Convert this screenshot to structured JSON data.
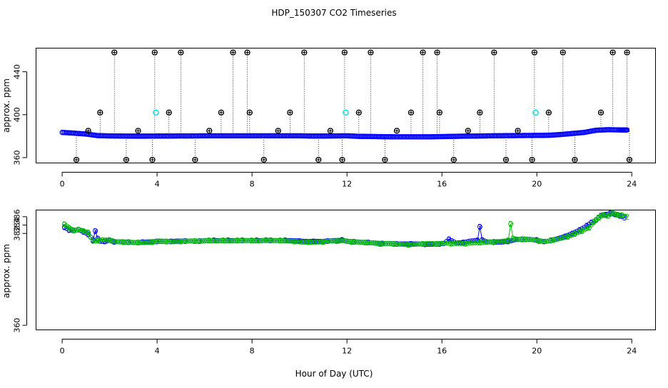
{
  "figure": {
    "title": "HDP_150307  CO2 Timeseries",
    "xlabel": "Hour of Day (UTC)"
  },
  "chart_data": [
    {
      "type": "scatter",
      "panel": "top",
      "ylabel": "approx. ppm",
      "xlim": [
        -1.1,
        25.0
      ],
      "ylim": [
        355,
        462
      ],
      "x_ticks": [
        0,
        4,
        8,
        12,
        16,
        20,
        24
      ],
      "y_ticks": [
        360,
        400,
        440
      ],
      "series": [
        {
          "name": "hourly CO2 trace (blue)",
          "color": "#0000ff",
          "x": [
            0.0,
            0.5,
            1.0,
            1.5,
            2.0,
            2.5,
            3.0,
            3.5,
            4.0,
            4.5,
            5.0,
            5.5,
            6.0,
            6.5,
            7.0,
            7.5,
            8.0,
            8.5,
            9.0,
            9.5,
            10.0,
            10.5,
            11.0,
            11.5,
            12.0,
            12.5,
            13.0,
            13.5,
            14.0,
            14.5,
            15.0,
            15.5,
            16.0,
            16.5,
            17.0,
            17.5,
            18.0,
            18.5,
            19.0,
            19.5,
            20.0,
            20.5,
            21.0,
            21.5,
            22.0,
            22.5,
            23.0,
            23.5,
            23.8
          ],
          "y": [
            383.5,
            382.8,
            382.0,
            380.5,
            380.2,
            380.1,
            380.0,
            380.0,
            380.1,
            380.1,
            380.2,
            380.2,
            380.3,
            380.3,
            380.3,
            380.3,
            380.3,
            380.3,
            380.3,
            380.3,
            380.3,
            380.1,
            380.1,
            380.2,
            380.3,
            379.8,
            379.7,
            379.5,
            379.4,
            379.4,
            379.4,
            379.4,
            379.6,
            379.8,
            380.0,
            380.1,
            380.3,
            380.4,
            380.5,
            380.6,
            380.7,
            380.8,
            381.5,
            382.5,
            383.5,
            385.5,
            386.0,
            385.8,
            385.8
          ]
        },
        {
          "name": "outlier spikes (black)",
          "color": "#000000",
          "x": [
            0.6,
            1.1,
            1.6,
            2.2,
            2.7,
            3.2,
            3.8,
            3.9,
            4.5,
            5.0,
            5.6,
            6.2,
            6.7,
            7.2,
            7.8,
            7.9,
            8.5,
            9.1,
            9.6,
            10.2,
            10.8,
            11.3,
            11.8,
            11.9,
            12.5,
            13.0,
            13.6,
            14.1,
            14.7,
            15.2,
            15.8,
            15.9,
            16.5,
            17.1,
            17.6,
            18.2,
            18.7,
            19.2,
            19.8,
            19.9,
            20.5,
            21.1,
            21.6,
            22.7,
            23.2,
            23.8,
            23.9
          ],
          "y": [
            358,
            385,
            402,
            458,
            358,
            385,
            358,
            458,
            402,
            458,
            358,
            385,
            402,
            458,
            458,
            402,
            358,
            385,
            402,
            458,
            358,
            385,
            358,
            458,
            402,
            458,
            358,
            385,
            402,
            458,
            458,
            402,
            358,
            385,
            402,
            458,
            358,
            385,
            358,
            458,
            402,
            458,
            358,
            402,
            458,
            458,
            358
          ]
        },
        {
          "name": "flagged points (cyan)",
          "color": "#00e5ee",
          "x": [
            3.95,
            11.95,
            19.95
          ],
          "y": [
            402,
            402,
            402
          ]
        }
      ]
    },
    {
      "type": "line",
      "panel": "bottom",
      "ylabel": "approx. ppm",
      "xlim": [
        -1.1,
        25.0
      ],
      "ylim": [
        358.9,
        387.6
      ],
      "x_ticks": [
        0,
        4,
        8,
        12,
        16,
        20,
        24
      ],
      "y_ticks": [
        360,
        382,
        384,
        386
      ],
      "series": [
        {
          "name": "3",
          "color": "#0000ff",
          "marker": "3",
          "x": [
            0.1,
            0.3,
            0.5,
            0.7,
            0.9,
            1.1,
            1.3,
            1.4,
            1.5,
            1.6,
            1.8,
            2.0,
            2.2,
            2.5,
            2.8,
            3.1,
            3.4,
            3.7,
            4.0,
            4.3,
            4.6,
            4.9,
            5.2,
            5.5,
            5.8,
            6.1,
            6.4,
            6.7,
            7.0,
            7.3,
            7.6,
            7.9,
            8.2,
            8.5,
            8.8,
            9.1,
            9.4,
            9.7,
            10.0,
            10.3,
            10.6,
            10.9,
            11.2,
            11.5,
            11.8,
            12.0,
            12.3,
            12.6,
            12.9,
            13.2,
            13.5,
            13.8,
            14.1,
            14.4,
            14.7,
            15.0,
            15.3,
            15.6,
            15.9,
            16.1,
            16.3,
            16.6,
            16.9,
            17.2,
            17.5,
            17.6,
            17.7,
            17.9,
            18.2,
            18.5,
            18.8,
            19.1,
            19.4,
            19.7,
            20.0,
            20.3,
            20.6,
            20.9,
            21.2,
            21.5,
            21.8,
            22.1,
            22.3,
            22.5,
            22.7,
            22.9,
            23.1,
            23.3,
            23.5,
            23.7
          ],
          "y": [
            383.5,
            382.8,
            382.7,
            382.9,
            382.4,
            381.8,
            380.4,
            382.6,
            380.8,
            380.1,
            380.1,
            380.3,
            380.0,
            380.0,
            379.9,
            379.8,
            379.9,
            380.0,
            380.1,
            380.1,
            380.1,
            380.2,
            380.2,
            380.2,
            380.2,
            380.3,
            380.3,
            380.3,
            380.3,
            380.3,
            380.3,
            380.3,
            380.3,
            380.3,
            380.3,
            380.3,
            380.3,
            380.3,
            380.2,
            380.1,
            380.1,
            380.1,
            380.2,
            380.3,
            380.4,
            380.1,
            380.0,
            379.9,
            379.8,
            379.7,
            379.6,
            379.6,
            379.5,
            379.5,
            379.5,
            379.5,
            379.4,
            379.4,
            379.5,
            379.6,
            380.6,
            379.7,
            379.8,
            380.2,
            380.3,
            383.6,
            380.4,
            380.0,
            379.9,
            379.9,
            380.1,
            380.5,
            380.6,
            380.6,
            380.4,
            380.0,
            380.3,
            380.8,
            381.3,
            382.0,
            382.8,
            383.8,
            384.6,
            385.2,
            386.2,
            386.5,
            386.8,
            386.6,
            386.2,
            385.8
          ]
        },
        {
          "name": "2",
          "color": "#00c000",
          "marker": "2",
          "x": [
            0.1,
            0.3,
            0.5,
            0.7,
            0.9,
            1.1,
            1.3,
            1.5,
            1.7,
            2.0,
            2.3,
            2.6,
            2.9,
            3.2,
            3.5,
            3.8,
            4.1,
            4.4,
            4.7,
            5.0,
            5.3,
            5.6,
            5.9,
            6.2,
            6.5,
            6.8,
            7.1,
            7.4,
            7.7,
            8.0,
            8.3,
            8.6,
            8.9,
            9.2,
            9.5,
            9.8,
            10.1,
            10.4,
            10.7,
            11.0,
            11.3,
            11.6,
            11.9,
            12.2,
            12.5,
            12.8,
            13.1,
            13.4,
            13.7,
            14.0,
            14.3,
            14.6,
            14.9,
            15.2,
            15.5,
            15.8,
            16.1,
            16.4,
            16.7,
            17.0,
            17.3,
            17.6,
            17.9,
            18.2,
            18.5,
            18.8,
            18.9,
            19.0,
            19.2,
            19.5,
            19.8,
            20.1,
            20.4,
            20.7,
            21.0,
            21.3,
            21.6,
            21.9,
            22.2,
            22.4,
            22.6,
            22.8,
            23.0,
            23.2,
            23.4,
            23.6,
            23.8
          ],
          "y": [
            384.2,
            383.3,
            382.7,
            382.9,
            382.6,
            382.2,
            380.1,
            380.3,
            380.5,
            380.4,
            380.0,
            379.9,
            379.9,
            379.8,
            379.8,
            379.9,
            380.2,
            380.1,
            380.0,
            380.1,
            380.2,
            380.2,
            380.2,
            380.3,
            380.2,
            380.3,
            380.2,
            380.3,
            380.3,
            380.3,
            380.2,
            380.4,
            380.3,
            380.3,
            380.2,
            380.1,
            379.9,
            379.9,
            379.9,
            380.0,
            380.2,
            380.2,
            380.3,
            380.0,
            379.9,
            379.8,
            379.7,
            379.5,
            379.6,
            379.5,
            379.4,
            379.3,
            379.4,
            379.5,
            379.6,
            379.5,
            379.7,
            379.6,
            379.6,
            379.6,
            379.7,
            379.8,
            379.9,
            380.0,
            380.1,
            380.3,
            384.3,
            380.8,
            380.6,
            380.6,
            380.5,
            380.2,
            380.1,
            380.4,
            380.8,
            381.2,
            381.9,
            382.6,
            383.4,
            384.8,
            385.8,
            386.4,
            386.2,
            386.9,
            386.5,
            386.3,
            386.0
          ]
        }
      ]
    }
  ]
}
